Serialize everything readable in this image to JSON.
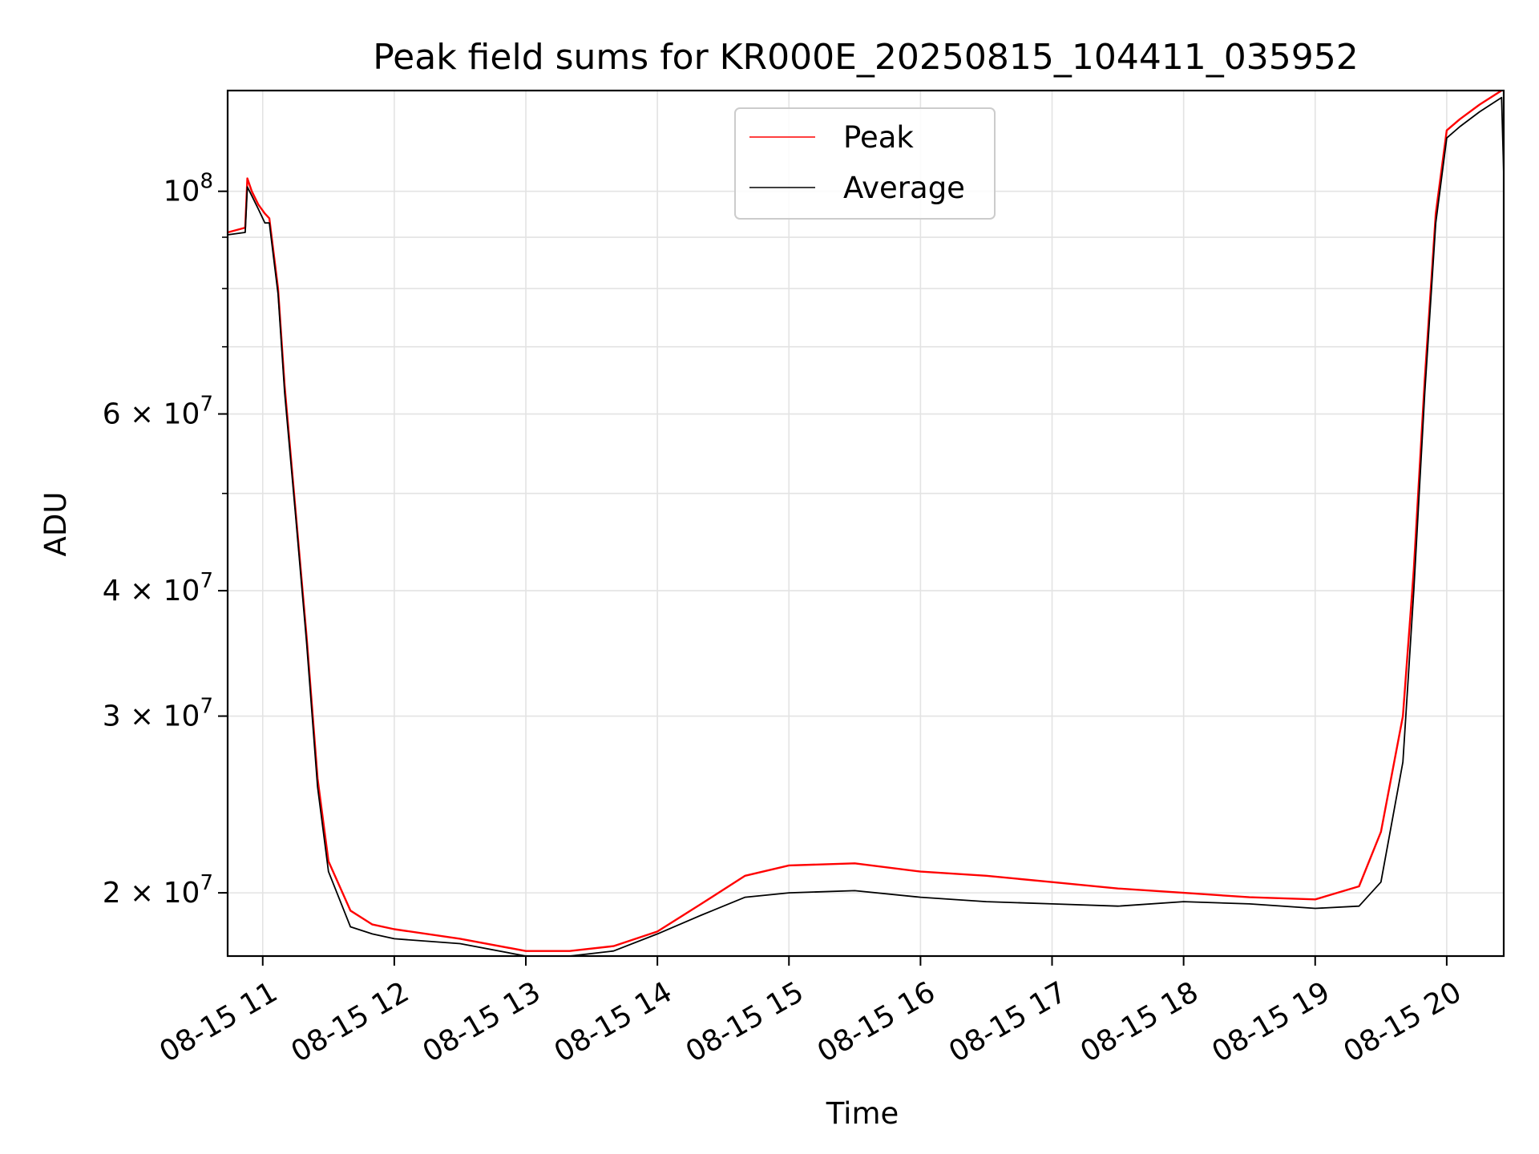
{
  "chart_data": {
    "type": "line",
    "title": "Peak field sums for KR000E_20250815_104411_035952",
    "xlabel": "Time",
    "ylabel": "ADU",
    "x_scale": "time",
    "y_scale": "log",
    "xlim": [
      "2025-08-15T10:44",
      "2025-08-15T20:26"
    ],
    "ylim": [
      17300000,
      126000000
    ],
    "x_ticks": [
      "08-15 11",
      "08-15 12",
      "08-15 13",
      "08-15 14",
      "08-15 15",
      "08-15 16",
      "08-15 17",
      "08-15 18",
      "08-15 19",
      "08-15 20"
    ],
    "y_ticks": [
      {
        "value": 100000000,
        "mant": "",
        "exp": "8"
      },
      {
        "value": 60000000,
        "mant": "6",
        "exp": "7"
      },
      {
        "value": 40000000,
        "mant": "4",
        "exp": "7"
      },
      {
        "value": 30000000,
        "mant": "3",
        "exp": "7"
      },
      {
        "value": 20000000,
        "mant": "2",
        "exp": "7"
      }
    ],
    "grid": true,
    "legend_position": "upper center",
    "series": [
      {
        "name": "Peak",
        "color": "#ff0000",
        "x": [
          "2025-08-15T10:44",
          "2025-08-15T10:52",
          "2025-08-15T10:53",
          "2025-08-15T10:55",
          "2025-08-15T10:58",
          "2025-08-15T11:01",
          "2025-08-15T11:03",
          "2025-08-15T11:07",
          "2025-08-15T11:10",
          "2025-08-15T11:15",
          "2025-08-15T11:20",
          "2025-08-15T11:25",
          "2025-08-15T11:30",
          "2025-08-15T11:40",
          "2025-08-15T11:50",
          "2025-08-15T12:00",
          "2025-08-15T12:30",
          "2025-08-15T13:00",
          "2025-08-15T13:20",
          "2025-08-15T13:40",
          "2025-08-15T14:00",
          "2025-08-15T14:20",
          "2025-08-15T14:40",
          "2025-08-15T15:00",
          "2025-08-15T15:30",
          "2025-08-15T16:00",
          "2025-08-15T16:30",
          "2025-08-15T17:00",
          "2025-08-15T17:30",
          "2025-08-15T18:00",
          "2025-08-15T18:30",
          "2025-08-15T19:00",
          "2025-08-15T19:20",
          "2025-08-15T19:30",
          "2025-08-15T19:40",
          "2025-08-15T19:45",
          "2025-08-15T19:50",
          "2025-08-15T19:55",
          "2025-08-15T20:00",
          "2025-08-15T20:06",
          "2025-08-15T20:15",
          "2025-08-15T20:25"
        ],
        "y": [
          91000000,
          92000000,
          103000000,
          100000000,
          97000000,
          95000000,
          94000000,
          80000000,
          64000000,
          48000000,
          36000000,
          26000000,
          21500000,
          19200000,
          18600000,
          18400000,
          18000000,
          17500000,
          17500000,
          17700000,
          18300000,
          19500000,
          20800000,
          21300000,
          21400000,
          21000000,
          20800000,
          20500000,
          20200000,
          20000000,
          19800000,
          19700000,
          20300000,
          23000000,
          30000000,
          42000000,
          65000000,
          95000000,
          115000000,
          118000000,
          122000000,
          126000000
        ]
      },
      {
        "name": "Average",
        "color": "#000000",
        "x": [
          "2025-08-15T10:44",
          "2025-08-15T10:52",
          "2025-08-15T10:53",
          "2025-08-15T10:55",
          "2025-08-15T10:58",
          "2025-08-15T11:01",
          "2025-08-15T11:03",
          "2025-08-15T11:07",
          "2025-08-15T11:10",
          "2025-08-15T11:15",
          "2025-08-15T11:20",
          "2025-08-15T11:25",
          "2025-08-15T11:30",
          "2025-08-15T11:40",
          "2025-08-15T11:50",
          "2025-08-15T12:00",
          "2025-08-15T12:30",
          "2025-08-15T13:00",
          "2025-08-15T13:20",
          "2025-08-15T13:40",
          "2025-08-15T14:00",
          "2025-08-15T14:20",
          "2025-08-15T14:40",
          "2025-08-15T15:00",
          "2025-08-15T15:30",
          "2025-08-15T16:00",
          "2025-08-15T16:30",
          "2025-08-15T17:00",
          "2025-08-15T17:30",
          "2025-08-15T18:00",
          "2025-08-15T18:30",
          "2025-08-15T19:00",
          "2025-08-15T19:20",
          "2025-08-15T19:30",
          "2025-08-15T19:40",
          "2025-08-15T19:45",
          "2025-08-15T19:50",
          "2025-08-15T19:55",
          "2025-08-15T20:00",
          "2025-08-15T20:06",
          "2025-08-15T20:15",
          "2025-08-15T20:25",
          "2025-08-15T20:26"
        ],
        "y": [
          90500000,
          91000000,
          101000000,
          99000000,
          96000000,
          93000000,
          93000000,
          79000000,
          63000000,
          47500000,
          35500000,
          25500000,
          21000000,
          18500000,
          18200000,
          18000000,
          17800000,
          17300000,
          17300000,
          17500000,
          18200000,
          19000000,
          19800000,
          20000000,
          20100000,
          19800000,
          19600000,
          19500000,
          19400000,
          19600000,
          19500000,
          19300000,
          19400000,
          20500000,
          27000000,
          40000000,
          63000000,
          93000000,
          113000000,
          116000000,
          120000000,
          124000000,
          104000000
        ]
      }
    ]
  }
}
